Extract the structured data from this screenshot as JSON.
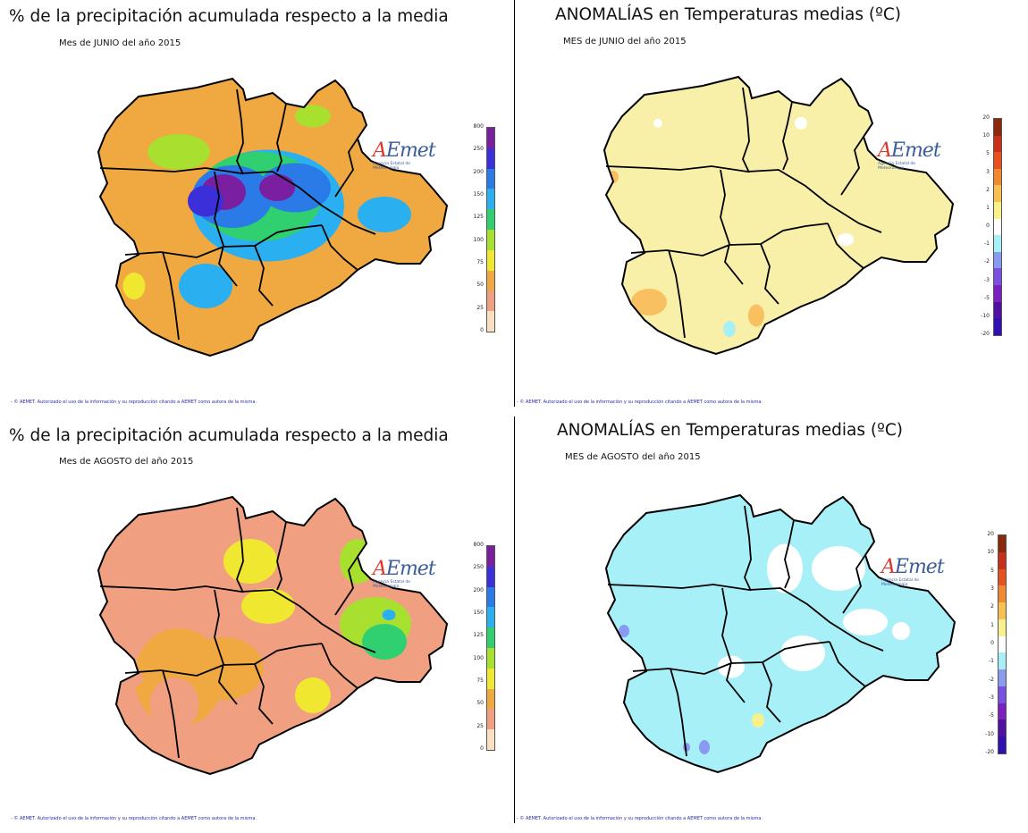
{
  "panels": [
    {
      "id": "precip-june",
      "title": "% de la precipitación acumulada respecto a la media",
      "subtitle": "Mes de JUNIO del año 2015",
      "footer": "- © AEMET. Autorizado el uso de la información y su reproducción citando a AEMET como autora de la misma.",
      "legend_labels": [
        "800",
        "250",
        "200",
        "150",
        "125",
        "100",
        "75",
        "50",
        "25",
        "0"
      ],
      "legend_colors": [
        "#7a1fa0",
        "#3a2fd8",
        "#2a7ae8",
        "#2ab0f0",
        "#30d070",
        "#a8e030",
        "#f0e830",
        "#f0a840",
        "#f0a080",
        "#f8e0c0"
      ],
      "palette": [
        "#f0a840",
        "#f0e830",
        "#a8e030",
        "#30d070",
        "#2ab0f0",
        "#2a7ae8",
        "#3a2fd8",
        "#7a1fa0"
      ]
    },
    {
      "id": "temp-june",
      "title": "ANOMALÍAS en Temperaturas medias (ºC)",
      "subtitle": "MES de JUNIO del año 2015",
      "footer": "- © AEMET. Autorizado el uso de la información y su reproducción citando a AEMET como autora de la misma.",
      "legend_labels": [
        "20",
        "10",
        "5",
        "3",
        "2",
        "1",
        "0",
        "-1",
        "-2",
        "-3",
        "-5",
        "-10",
        "-20"
      ],
      "legend_colors": [
        "#8b2a0a",
        "#c8301a",
        "#e85020",
        "#f08a30",
        "#f8c050",
        "#f8f08a",
        "#ffffff",
        "#a8f0f8",
        "#8a9af0",
        "#7a50e0",
        "#7a20c0",
        "#5010a0",
        "#3010b0"
      ],
      "palette": [
        "#f8f0a8",
        "#f8c060",
        "#ffffff",
        "#a8f0f8"
      ]
    },
    {
      "id": "precip-august",
      "title": "% de la precipitación acumulada respecto a la media",
      "subtitle": "Mes de AGOSTO del año 2015",
      "footer": "- © AEMET. Autorizado el uso de la información y su reproducción citando a AEMET como autora de la misma.",
      "legend_labels": [
        "800",
        "250",
        "200",
        "150",
        "125",
        "100",
        "75",
        "50",
        "25",
        "0"
      ],
      "legend_colors": [
        "#7a1fa0",
        "#3a2fd8",
        "#2a7ae8",
        "#2ab0f0",
        "#30d070",
        "#a8e030",
        "#f0e830",
        "#f0a840",
        "#f0a080",
        "#f8e0c0"
      ],
      "palette": [
        "#f0a080",
        "#f0a840",
        "#f0e830",
        "#a8e030",
        "#30d070",
        "#2ab0f0"
      ]
    },
    {
      "id": "temp-august",
      "title": "ANOMALÍAS en Temperaturas medias (ºC)",
      "subtitle": "MES de AGOSTO del año 2015",
      "footer": "- © AEMET. Autorizado el uso de la información y su reproducción citando a AEMET como autora de la misma.",
      "legend_labels": [
        "20",
        "10",
        "5",
        "3",
        "2",
        "1",
        "0",
        "-1",
        "-2",
        "-3",
        "-5",
        "-10",
        "-20"
      ],
      "legend_colors": [
        "#8b2a0a",
        "#c8301a",
        "#e85020",
        "#f08a30",
        "#f8c050",
        "#f8f08a",
        "#ffffff",
        "#a8f0f8",
        "#8a9af0",
        "#7a50e0",
        "#7a20c0",
        "#5010a0",
        "#3010b0"
      ],
      "palette": [
        "#a8f0f8",
        "#ffffff",
        "#8a9af0",
        "#f8f08a"
      ]
    }
  ],
  "logo": {
    "name": "AEMet",
    "tagline": "Agencia Estatal de Meteorología"
  }
}
